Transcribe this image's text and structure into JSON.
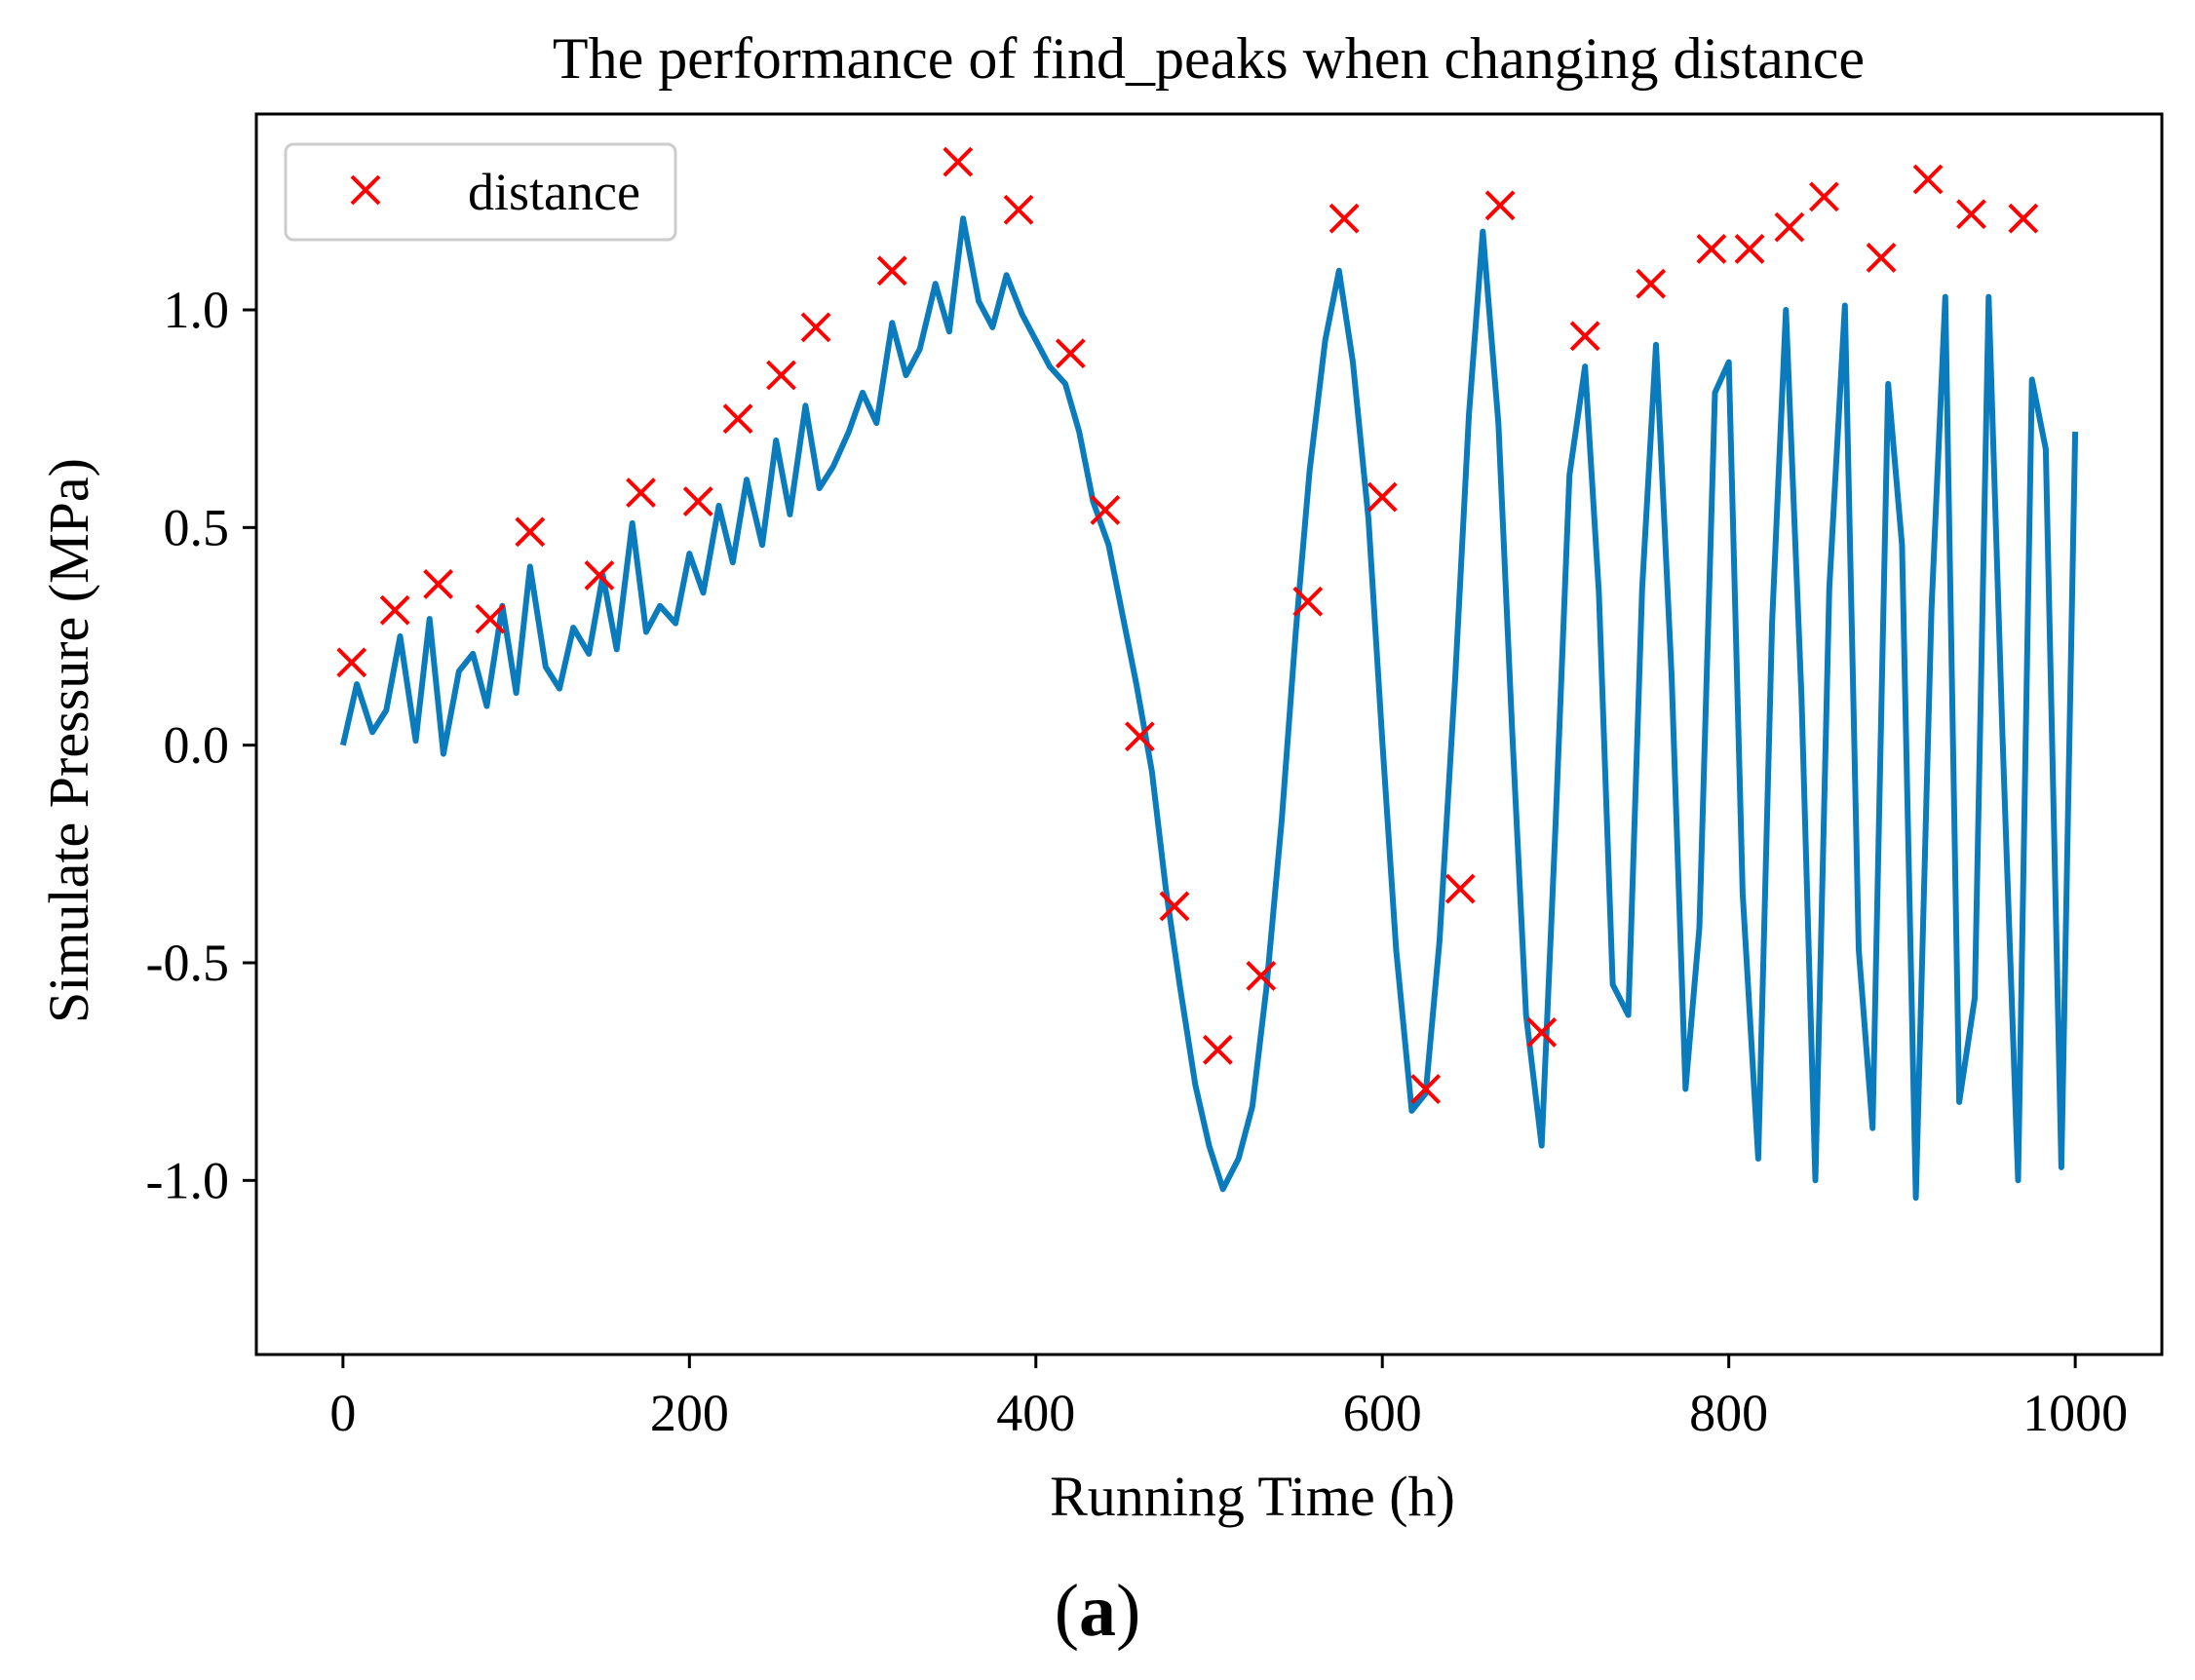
{
  "figure": {
    "caption_open": "(",
    "caption_letter": "a",
    "caption_close": ")"
  },
  "colors": {
    "line": "#0a7bbd",
    "marker": "#ff0000",
    "axis": "#000000"
  },
  "chart_data": {
    "type": "line",
    "title": "The performance of find_peaks when changing distance",
    "xlabel": "Running Time (h)",
    "ylabel": "Simulate Pressure (MPa)",
    "xlim": [
      -50,
      1050
    ],
    "ylim": [
      -1.4,
      1.45
    ],
    "xticks": [
      0,
      200,
      400,
      600,
      800,
      1000
    ],
    "xtick_labels": [
      "0",
      "200",
      "400",
      "600",
      "800",
      "1000"
    ],
    "yticks": [
      -1.0,
      -0.5,
      0.0,
      0.5,
      1.0
    ],
    "ytick_labels": [
      "-1.0",
      "-0.5",
      "0.0",
      "0.5",
      "1.0"
    ],
    "legend": {
      "position": "top-left",
      "entries": [
        {
          "label": "distance",
          "marker": "x",
          "color": "#ff0000"
        }
      ]
    },
    "series": [
      {
        "name": "signal",
        "type": "line",
        "color": "#0a7bbd",
        "x": [
          0,
          8,
          17,
          25,
          33,
          42,
          50,
          58,
          67,
          75,
          83,
          92,
          100,
          108,
          117,
          125,
          133,
          142,
          150,
          158,
          167,
          175,
          183,
          192,
          200,
          208,
          217,
          225,
          233,
          242,
          250,
          258,
          267,
          275,
          283,
          292,
          300,
          308,
          317,
          325,
          333,
          342,
          350,
          358,
          367,
          375,
          383,
          392,
          400,
          408,
          417,
          425,
          433,
          442,
          450,
          458,
          467,
          475,
          483,
          492,
          500,
          508,
          517,
          525,
          533,
          542,
          550,
          558,
          567,
          575,
          583,
          592,
          600,
          608,
          617,
          625,
          633,
          642,
          650,
          658,
          667,
          675,
          683,
          692,
          700,
          708,
          717,
          725,
          733,
          742,
          750,
          758,
          767,
          775,
          783,
          792,
          800,
          808,
          817,
          825,
          833,
          842,
          850,
          858,
          867,
          875,
          883,
          892,
          900,
          908,
          917,
          925,
          933,
          942,
          950,
          958,
          967,
          975,
          983,
          992,
          1000
        ],
        "values": [
          0.0,
          0.14,
          0.03,
          0.08,
          0.25,
          0.01,
          0.29,
          -0.02,
          0.17,
          0.21,
          0.09,
          0.32,
          0.12,
          0.41,
          0.18,
          0.13,
          0.27,
          0.21,
          0.39,
          0.22,
          0.51,
          0.26,
          0.32,
          0.28,
          0.44,
          0.35,
          0.55,
          0.42,
          0.61,
          0.46,
          0.7,
          0.53,
          0.78,
          0.59,
          0.64,
          0.72,
          0.81,
          0.74,
          0.97,
          0.85,
          0.91,
          1.06,
          0.95,
          1.21,
          1.02,
          0.96,
          1.08,
          0.99,
          0.93,
          0.87,
          0.83,
          0.72,
          0.56,
          0.46,
          0.3,
          0.14,
          -0.06,
          -0.33,
          -0.55,
          -0.78,
          -0.92,
          -1.02,
          -0.95,
          -0.83,
          -0.56,
          -0.17,
          0.26,
          0.63,
          0.93,
          1.09,
          0.88,
          0.52,
          0.01,
          -0.47,
          -0.84,
          -0.8,
          -0.45,
          0.15,
          0.76,
          1.18,
          0.74,
          0.03,
          -0.62,
          -0.92,
          -0.18,
          0.62,
          0.87,
          0.35,
          -0.55,
          -0.62,
          0.36,
          0.92,
          0.16,
          -0.79,
          -0.42,
          0.81,
          0.88,
          -0.34,
          -0.95,
          0.28,
          1.0,
          0.11,
          -1.0,
          0.36,
          1.01,
          -0.47,
          -0.88,
          0.83,
          0.46,
          -1.04,
          0.31,
          1.03,
          -0.82,
          -0.58,
          1.03,
          0.02,
          -1.0,
          0.84,
          0.68,
          -0.97,
          0.72
        ],
        "note": "Dense noisy signal; values are a sampled approximation of the plotted curve"
      },
      {
        "name": "distance",
        "type": "scatter",
        "marker": "x",
        "color": "#ff0000",
        "x": [
          5,
          30,
          55,
          85,
          108,
          148,
          172,
          205,
          228,
          253,
          273,
          317,
          355,
          390,
          420,
          440,
          460,
          480,
          505,
          530,
          557,
          578,
          600,
          625,
          645,
          668,
          692,
          717,
          755,
          790,
          812,
          835,
          855,
          888,
          915,
          940,
          970
        ],
        "values": [
          0.19,
          0.31,
          0.37,
          0.29,
          0.49,
          0.39,
          0.58,
          0.56,
          0.75,
          0.85,
          0.96,
          1.09,
          1.34,
          1.23,
          0.9,
          0.54,
          0.02,
          -0.37,
          -0.7,
          -0.53,
          0.33,
          1.21,
          0.57,
          -0.79,
          -0.33,
          1.24,
          -0.66,
          0.94,
          1.06,
          1.14,
          1.14,
          1.19,
          1.26,
          1.12,
          1.3,
          1.22,
          1.21
        ]
      }
    ]
  }
}
